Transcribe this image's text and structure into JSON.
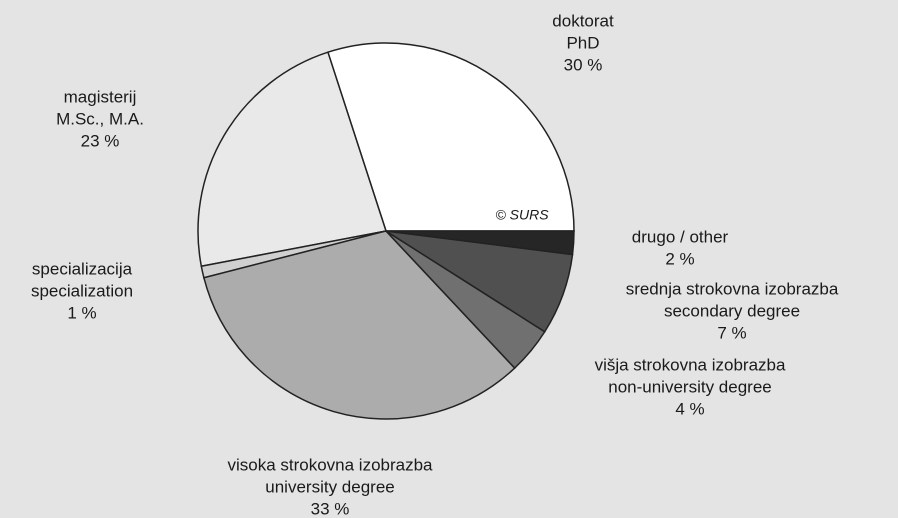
{
  "chart_data": {
    "type": "pie",
    "categories": [
      [
        "doktorat",
        "PhD"
      ],
      [
        "magisterij",
        "M.Sc.,  M.A."
      ],
      [
        "specializacija",
        "specialization"
      ],
      [
        "visoka  strokovna  izobrazba",
        "university  degree"
      ],
      [
        "višja  strokovna  izobrazba",
        "non-university  degree"
      ],
      [
        "srednja  strokovna  izobrazba",
        "secondary  degree"
      ],
      [
        "drugo  /  other"
      ]
    ],
    "values": [
      30,
      23,
      1,
      33,
      4,
      7,
      2
    ],
    "value_labels": [
      "30  %",
      "23  %",
      "1  %",
      "33  %",
      "4  %",
      "7  %",
      "2  %"
    ],
    "colors": [
      "#ffffff",
      "#e9e9e9",
      "#d0d0d0",
      "#acacac",
      "#707070",
      "#505050",
      "#262626"
    ],
    "annotation": "© SURS"
  }
}
